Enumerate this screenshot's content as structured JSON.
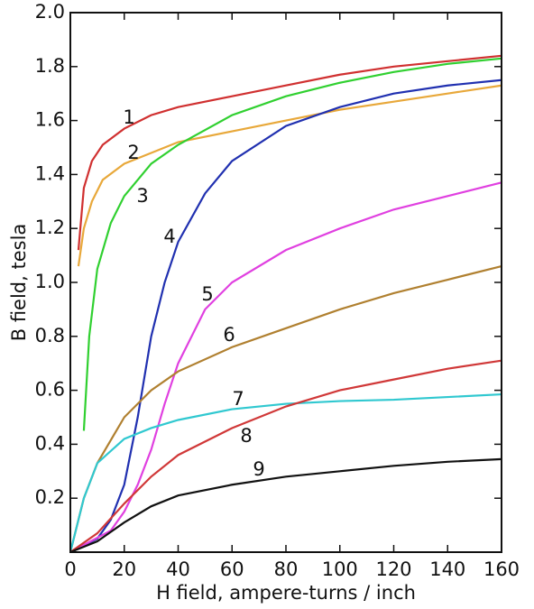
{
  "chart_data": {
    "type": "line",
    "xlabel": "H field, ampere-turns / inch",
    "ylabel": "B field, tesla",
    "xlim": [
      0,
      160
    ],
    "xticks": [
      0,
      20,
      40,
      60,
      80,
      100,
      120,
      140,
      160
    ],
    "ylim": [
      0,
      2
    ],
    "yticks": [
      0.2,
      0.4,
      0.6,
      0.8,
      {
        "value": 1,
        "label": "1.0"
      },
      1.2,
      1.4,
      1.6,
      1.8,
      {
        "value": 2,
        "label": "2.0"
      }
    ],
    "series": [
      {
        "name": "1",
        "color": "#d03030",
        "x": [
          3,
          5,
          8,
          12,
          20,
          30,
          40,
          60,
          80,
          100,
          120,
          140,
          160
        ],
        "values": [
          1.12,
          1.35,
          1.45,
          1.51,
          1.57,
          1.62,
          1.65,
          1.69,
          1.73,
          1.77,
          1.8,
          1.82,
          1.84
        ]
      },
      {
        "name": "2",
        "color": "#e8a83a",
        "x": [
          3,
          5,
          8,
          12,
          20,
          30,
          40,
          60,
          80,
          100,
          120,
          140,
          160
        ],
        "values": [
          1.06,
          1.2,
          1.3,
          1.38,
          1.44,
          1.48,
          1.52,
          1.56,
          1.6,
          1.64,
          1.67,
          1.7,
          1.73
        ]
      },
      {
        "name": "3",
        "color": "#30d030",
        "x": [
          5,
          7,
          10,
          15,
          20,
          30,
          40,
          60,
          80,
          100,
          120,
          140,
          160
        ],
        "values": [
          0.45,
          0.8,
          1.05,
          1.22,
          1.32,
          1.44,
          1.51,
          1.62,
          1.69,
          1.74,
          1.78,
          1.81,
          1.83
        ]
      },
      {
        "name": "4",
        "color": "#2030b0",
        "x": [
          0,
          10,
          15,
          20,
          25,
          30,
          35,
          40,
          50,
          60,
          80,
          100,
          120,
          140,
          160
        ],
        "values": [
          0,
          0.05,
          0.12,
          0.25,
          0.5,
          0.8,
          1.0,
          1.15,
          1.33,
          1.45,
          1.58,
          1.65,
          1.7,
          1.73,
          1.75
        ]
      },
      {
        "name": "5",
        "color": "#e040e0",
        "x": [
          0,
          15,
          20,
          25,
          30,
          35,
          40,
          50,
          60,
          80,
          100,
          120,
          140,
          160
        ],
        "values": [
          0,
          0.08,
          0.15,
          0.25,
          0.38,
          0.55,
          0.7,
          0.9,
          1.0,
          1.12,
          1.2,
          1.27,
          1.32,
          1.37
        ]
      },
      {
        "name": "6",
        "color": "#b08030",
        "x": [
          0,
          5,
          10,
          20,
          30,
          40,
          60,
          80,
          100,
          120,
          140,
          160
        ],
        "values": [
          0,
          0.2,
          0.33,
          0.5,
          0.6,
          0.67,
          0.76,
          0.83,
          0.9,
          0.96,
          1.01,
          1.06
        ]
      },
      {
        "name": "7",
        "color": "#30c8d0",
        "x": [
          0,
          5,
          10,
          20,
          30,
          40,
          60,
          80,
          100,
          120,
          140,
          160
        ],
        "values": [
          0,
          0.2,
          0.33,
          0.42,
          0.46,
          0.49,
          0.53,
          0.55,
          0.56,
          0.565,
          0.575,
          0.585
        ]
      },
      {
        "name": "8",
        "color": "#d03838",
        "x": [
          0,
          10,
          20,
          30,
          40,
          60,
          80,
          100,
          120,
          140,
          160
        ],
        "values": [
          0,
          0.07,
          0.18,
          0.28,
          0.36,
          0.46,
          0.54,
          0.6,
          0.64,
          0.68,
          0.71
        ]
      },
      {
        "name": "9",
        "color": "#111111",
        "x": [
          0,
          10,
          20,
          30,
          40,
          60,
          80,
          100,
          120,
          140,
          160
        ],
        "values": [
          0,
          0.04,
          0.11,
          0.17,
          0.21,
          0.25,
          0.28,
          0.3,
          0.32,
          0.335,
          0.345
        ]
      }
    ]
  }
}
